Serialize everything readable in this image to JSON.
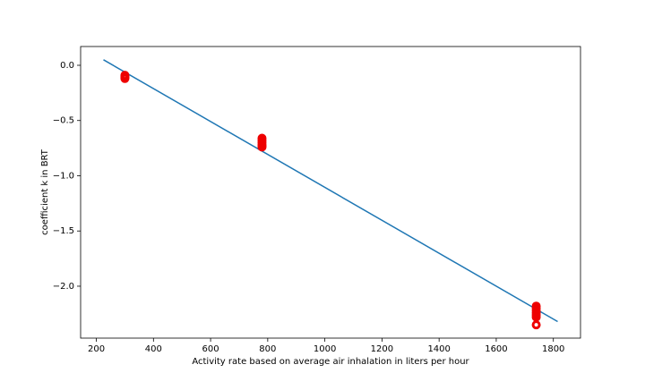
{
  "chart_data": {
    "type": "scatter",
    "xlabel": "Activity rate based on average air inhalation in liters per hour",
    "ylabel": "coefficient k in BRT",
    "x": [
      300,
      300,
      300,
      300,
      780,
      780,
      780,
      780,
      780,
      780,
      1740,
      1740,
      1740,
      1740,
      1740,
      1740,
      1740
    ],
    "values": [
      -0.09,
      -0.1,
      -0.11,
      -0.12,
      -0.66,
      -0.68,
      -0.7,
      -0.72,
      -0.73,
      -0.74,
      -2.18,
      -2.2,
      -2.22,
      -2.24,
      -2.26,
      -2.28,
      -2.35
    ],
    "color": "#ee0000",
    "fit_line": {
      "x": [
        225,
        1815
      ],
      "values": [
        0.05,
        -2.32
      ],
      "color": "#1f77b4"
    },
    "xlim": [
      145,
      1895
    ],
    "xticks": [
      200,
      400,
      600,
      800,
      1000,
      1200,
      1400,
      1600,
      1800
    ],
    "ylim": [
      -2.47,
      0.17
    ],
    "yticks": [
      {
        "value": 0,
        "label": "0.0"
      },
      {
        "value": -0.5,
        "label": "−0.5"
      },
      {
        "value": -1,
        "label": "−1.0"
      },
      {
        "value": -1.5,
        "label": "−1.5"
      },
      {
        "value": -2,
        "label": "−2.0"
      }
    ]
  }
}
